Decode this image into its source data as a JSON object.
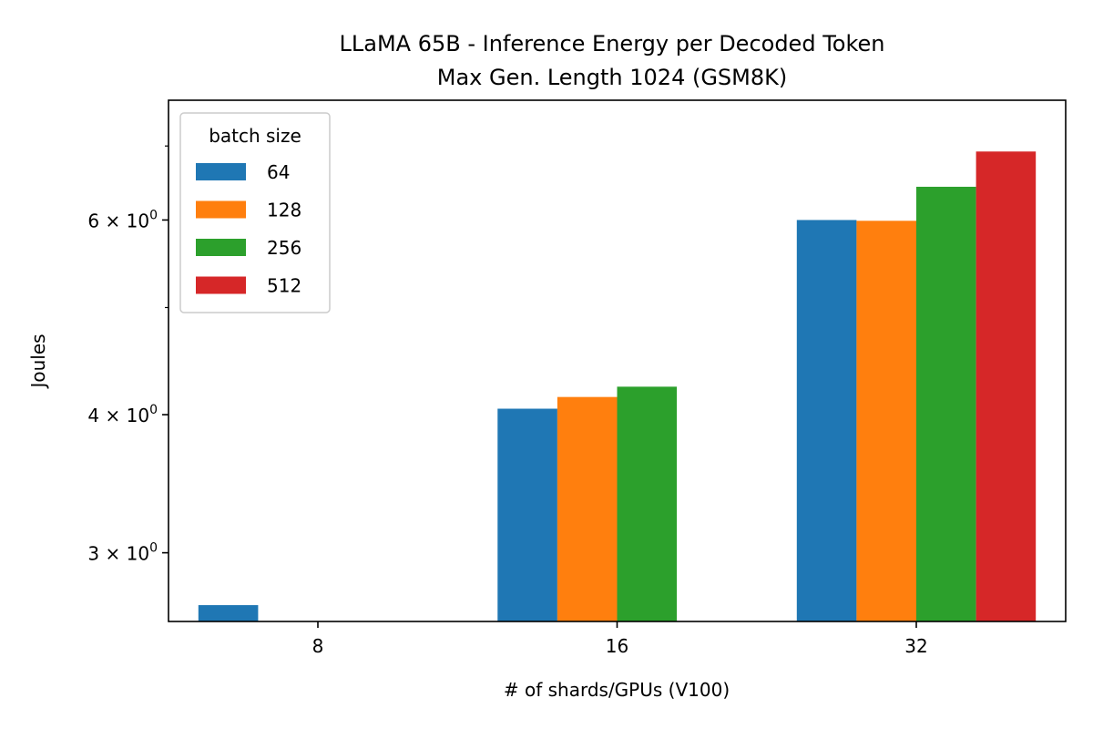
{
  "chart_data": {
    "type": "bar",
    "title_line1": "LLaMA 65B - Inference Energy per Decoded Token",
    "title_line2": "Max Gen. Length 1024 (GSM8K)",
    "xlabel": "# of shards/GPUs (V100)",
    "ylabel": "Joules",
    "y_scale": "log",
    "ylim": [
      2.6,
      7.7
    ],
    "categories": [
      "8",
      "16",
      "32"
    ],
    "yticks": [
      {
        "value": 3,
        "mantissa": "3",
        "base": "10",
        "exp": "0"
      },
      {
        "value": 4,
        "mantissa": "4",
        "base": "10",
        "exp": "0"
      },
      {
        "value": 6,
        "mantissa": "6",
        "base": "10",
        "exp": "0"
      }
    ],
    "minor_yticks": [
      5,
      7
    ],
    "legend": {
      "title": "batch size",
      "position": "upper left"
    },
    "grid": false,
    "series": [
      {
        "name": "64",
        "color": "#1f77b4",
        "values": [
          2.69,
          4.05,
          6.0
        ]
      },
      {
        "name": "128",
        "color": "#ff7f0e",
        "values": [
          null,
          4.15,
          5.99
        ]
      },
      {
        "name": "256",
        "color": "#2ca02c",
        "values": [
          null,
          4.24,
          6.43
        ]
      },
      {
        "name": "512",
        "color": "#d62728",
        "values": [
          null,
          null,
          6.92
        ]
      }
    ]
  }
}
